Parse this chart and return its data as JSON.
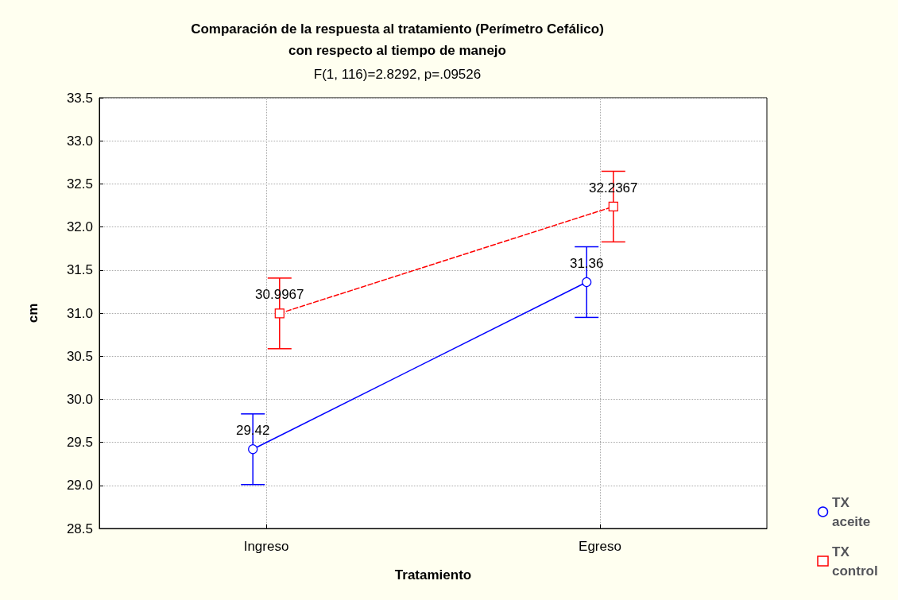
{
  "chart_data": {
    "type": "line",
    "title": "Comparación de la respuesta al tratamiento (Perímetro Cefálico)\ncon respecto al tiempo de manejo",
    "subtitle": "F(1, 116)=2.8292, p=.09526",
    "xlabel": "Tratamiento",
    "ylabel": "cm",
    "categories": [
      "Ingreso",
      "Egreso"
    ],
    "series": [
      {
        "name": "TX aceite",
        "color": "#0000ff",
        "values": [
          29.42,
          31.36
        ],
        "errors": [
          0.41,
          0.41
        ],
        "marker": "circle",
        "line_style": "solid"
      },
      {
        "name": "TX control",
        "color": "#ff0000",
        "values": [
          30.9967,
          32.2367
        ],
        "errors": [
          0.41,
          0.41
        ],
        "marker": "square",
        "line_style": "dashed"
      }
    ],
    "ylim": [
      28.5,
      33.5
    ],
    "yticks": [
      {
        "value": 28.5,
        "label": "28.5"
      },
      {
        "value": 29,
        "label": "29.0"
      },
      {
        "value": 29.5,
        "label": "29.5"
      },
      {
        "value": 30,
        "label": "30.0"
      },
      {
        "value": 30.5,
        "label": "30.5"
      },
      {
        "value": 31,
        "label": "31.0"
      },
      {
        "value": 31.5,
        "label": "31.5"
      },
      {
        "value": 32,
        "label": "32.0"
      },
      {
        "value": 32.5,
        "label": "32.5"
      },
      {
        "value": 33,
        "label": "33.0"
      },
      {
        "value": 33.5,
        "label": "33.5"
      }
    ],
    "grid": true,
    "legend": "bottom right",
    "data_labels": true
  }
}
